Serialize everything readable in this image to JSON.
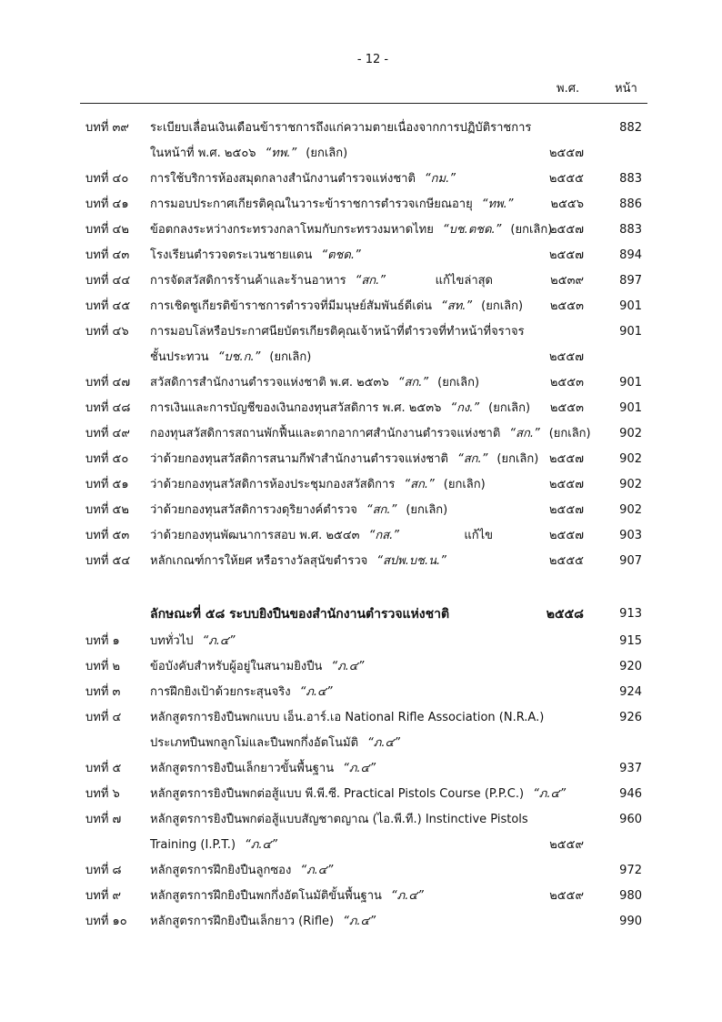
{
  "page_number": "- 12 -",
  "columns": {
    "year": "พ.ศ.",
    "page": "หน้า"
  },
  "sections": [
    {
      "entries": [
        {
          "label": "บทที่ ๓๙",
          "lines": [
            [
              {
                "text": "ระเบียบเลื่อนเงินเดือนข้าราชการถึงแก่ความตายเนื่องจากการปฏิบัติราชการ"
              }
            ],
            [
              {
                "text": "ในหน้าที่ พ.ศ. ๒๕๐๖"
              },
              {
                "text": "“ทพ.”",
                "italic": true
              },
              {
                "text": "(ยกเลิก)"
              }
            ]
          ],
          "year": "๒๕๕๗",
          "page": 882
        },
        {
          "label": "บทที่ ๔๐",
          "lines": [
            [
              {
                "text": "การใช้บริการห้องสมุดกลางสำนักงานตำรวจแห่งชาติ"
              },
              {
                "text": "“กม.”",
                "italic": true
              }
            ]
          ],
          "year": "๒๕๕๕",
          "page": 883
        },
        {
          "label": "บทที่ ๔๑",
          "lines": [
            [
              {
                "text": "การมอบประกาศเกียรติคุณในวาระข้าราชการตำรวจเกษียณอายุ"
              },
              {
                "text": "“ทพ.”",
                "italic": true
              }
            ]
          ],
          "year": "๒๕๕๖",
          "page": 886
        },
        {
          "label": "บทที่ ๔๒",
          "lines": [
            [
              {
                "text": "ข้อตกลงระหว่างกระทรวงกลาโหมกับกระทรวงมหาดไทย"
              },
              {
                "text": "“บช.ตชด.”",
                "italic": true
              },
              {
                "text": "(ยกเลิก)"
              }
            ]
          ],
          "year": "๒๕๕๗",
          "page": 883
        },
        {
          "label": "บทที่ ๔๓",
          "lines": [
            [
              {
                "text": "โรงเรียนตำรวจตระเวนชายแดน"
              },
              {
                "text": "“ตชด.”",
                "italic": true
              }
            ]
          ],
          "year": "๒๕๕๗",
          "page": 894
        },
        {
          "label": "บทที่ ๔๔",
          "lines": [
            [
              {
                "text": "การจัดสวัสดิการร้านค้าและร้านอาหาร"
              },
              {
                "text": "“สก.”",
                "italic": true
              }
            ]
          ],
          "note": "แก้ไขล่าสุด",
          "year": "๒๕๓๙",
          "page": 897
        },
        {
          "label": "บทที่ ๔๕",
          "lines": [
            [
              {
                "text": "การเชิดชูเกียรติข้าราชการตำรวจที่มีมนุษย์สัมพันธ์ดีเด่น"
              },
              {
                "text": "“สท.”",
                "italic": true
              },
              {
                "text": "(ยกเลิก)"
              }
            ]
          ],
          "year": "๒๕๕๓",
          "page": 901
        },
        {
          "label": "บทที่ ๔๖",
          "lines": [
            [
              {
                "text": "การมอบโล่หรือประกาศนียบัตรเกียรติคุณเจ้าหน้าที่ตำรวจที่ทำหน้าที่จราจร"
              }
            ],
            [
              {
                "text": "ชั้นประทวน"
              },
              {
                "text": "“บช.ก.”",
                "italic": true
              },
              {
                "text": "(ยกเลิก)"
              }
            ]
          ],
          "year": "๒๕๕๗",
          "page": 901
        },
        {
          "label": "บทที่ ๔๗",
          "lines": [
            [
              {
                "text": "สวัสดิการสำนักงานตำรวจแห่งชาติ พ.ศ. ๒๕๓๖"
              },
              {
                "text": "“สก.”",
                "italic": true
              },
              {
                "text": "(ยกเลิก)"
              }
            ]
          ],
          "year": "๒๕๕๓",
          "page": 901
        },
        {
          "label": "บทที่ ๔๘",
          "lines": [
            [
              {
                "text": "การเงินและการบัญชีของเงินกองทุนสวัสดิการ พ.ศ. ๒๕๓๖"
              },
              {
                "text": "“กง.”",
                "italic": true
              },
              {
                "text": "(ยกเลิก)"
              }
            ]
          ],
          "year": "๒๕๕๓",
          "page": 901
        },
        {
          "label": "บทที่ ๔๙",
          "lines": [
            [
              {
                "text": "กองทุนสวัสดิการสถานพักฟื้นและตากอากาศสำนักงานตำรวจแห่งชาติ"
              },
              {
                "text": "“สก.”",
                "italic": true
              },
              {
                "text": "(ยกเลิก)"
              }
            ]
          ],
          "page": 902
        },
        {
          "label": "บทที่ ๕๐",
          "lines": [
            [
              {
                "text": "ว่าด้วยกองทุนสวัสดิการสนามกีฬาสำนักงานตำรวจแห่งชาติ"
              },
              {
                "text": "“สก.”",
                "italic": true
              },
              {
                "text": "(ยกเลิก)"
              }
            ]
          ],
          "year": "๒๕๕๗",
          "page": 902
        },
        {
          "label": "บทที่ ๕๑",
          "lines": [
            [
              {
                "text": "ว่าด้วยกองทุนสวัสดิการห้องประชุมกองสวัสดิการ"
              },
              {
                "text": "“สก.”",
                "italic": true
              },
              {
                "text": "(ยกเลิก)"
              }
            ]
          ],
          "year": "๒๕๕๗",
          "page": 902
        },
        {
          "label": "บทที่ ๕๒",
          "lines": [
            [
              {
                "text": "ว่าด้วยกองทุนสวัสดิการวงดุริยางค์ตำรวจ"
              },
              {
                "text": "“สก.”",
                "italic": true
              },
              {
                "text": "(ยกเลิก)"
              }
            ]
          ],
          "year": "๒๕๕๗",
          "page": 902
        },
        {
          "label": "บทที่ ๕๓",
          "lines": [
            [
              {
                "text": "ว่าด้วยกองทุนพัฒนาการสอบ พ.ศ. ๒๕๔๓"
              },
              {
                "text": "“กส.”",
                "italic": true
              }
            ]
          ],
          "note": "แก้ไข",
          "year": "๒๕๕๗",
          "page": 903
        },
        {
          "label": "บทที่ ๕๔",
          "lines": [
            [
              {
                "text": "หลักเกณฑ์การให้ยศ หรือรางวัลสุนัขตำรวจ"
              },
              {
                "text": "“สปพ.บช.น.”",
                "italic": true
              }
            ]
          ],
          "year": "๒๕๕๕",
          "page": 907
        }
      ]
    },
    {
      "heading": {
        "text": "ลักษณะที่ ๕๘ ระบบยิงปืนของสำนักงานตำรวจแห่งชาติ",
        "year": "๒๕๕๘",
        "page": 913
      },
      "entries": [
        {
          "label": "บทที่ ๑",
          "lines": [
            [
              {
                "text": "บททั่วไป"
              },
              {
                "text": "“ภ.๔”",
                "italic": true
              }
            ]
          ],
          "page": 915
        },
        {
          "label": "บทที่ ๒",
          "lines": [
            [
              {
                "text": "ข้อบังคับสำหรับผู้อยู่ในสนามยิงปืน"
              },
              {
                "text": "“ภ.๔”",
                "italic": true
              }
            ]
          ],
          "page": 920
        },
        {
          "label": "บทที่ ๓",
          "lines": [
            [
              {
                "text": "การฝึกยิงเป้าด้วยกระสุนจริง"
              },
              {
                "text": "“ภ.๔”",
                "italic": true
              }
            ]
          ],
          "page": 924
        },
        {
          "label": "บทที่ ๔",
          "lines": [
            [
              {
                "text": "หลักสูตรการยิงปืนพกแบบ เอ็น.อาร์.เอ National Rifle Association (N.R.A.)"
              }
            ],
            [
              {
                "text": "ประเภทปืนพกลูกโม่และปืนพกกึ่งอัตโนมัติ"
              },
              {
                "text": "“ภ.๔”",
                "italic": true
              }
            ]
          ],
          "page": 926
        },
        {
          "label": "บทที่ ๕",
          "lines": [
            [
              {
                "text": "หลักสูตรการยิงปืนเล็กยาวขั้นพื้นฐาน"
              },
              {
                "text": "“ภ.๔”",
                "italic": true
              }
            ]
          ],
          "page": 937
        },
        {
          "label": "บทที่ ๖",
          "lines": [
            [
              {
                "text": "หลักสูตรการยิงปืนพกต่อสู้แบบ พี.พี.ซี. Practical Pistols Course (P.P.C.)"
              },
              {
                "text": "“ภ.๔”",
                "italic": true
              }
            ]
          ],
          "page": 946
        },
        {
          "label": "บทที่ ๗",
          "lines": [
            [
              {
                "text": "หลักสูตรการยิงปืนพกต่อสู้แบบสัญชาตญาณ (ไอ.พี.ที.) Instinctive Pistols"
              }
            ],
            [
              {
                "text": "Training (I.P.T.)"
              },
              {
                "text": "“ภ.๔”",
                "italic": true
              }
            ]
          ],
          "year": "๒๕๕๙",
          "page": 960
        },
        {
          "label": "บทที่ ๘",
          "lines": [
            [
              {
                "text": "หลักสูตรการฝึกยิงปืนลูกซอง"
              },
              {
                "text": "“ภ.๔”",
                "italic": true
              }
            ]
          ],
          "page": 972
        },
        {
          "label": "บทที่ ๙",
          "lines": [
            [
              {
                "text": "หลักสูตรการฝึกยิงปืนพกกึ่งอัตโนมัติขั้นพื้นฐาน"
              },
              {
                "text": "“ภ.๔”",
                "italic": true
              }
            ]
          ],
          "year": "๒๕๕๙",
          "page": 980
        },
        {
          "label": "บทที่ ๑๐",
          "lines": [
            [
              {
                "text": "หลักสูตรการฝึกยิงปืนเล็กยาว (Rifle)"
              },
              {
                "text": "“ภ.๔”",
                "italic": true
              }
            ]
          ],
          "page": 990
        }
      ]
    }
  ]
}
